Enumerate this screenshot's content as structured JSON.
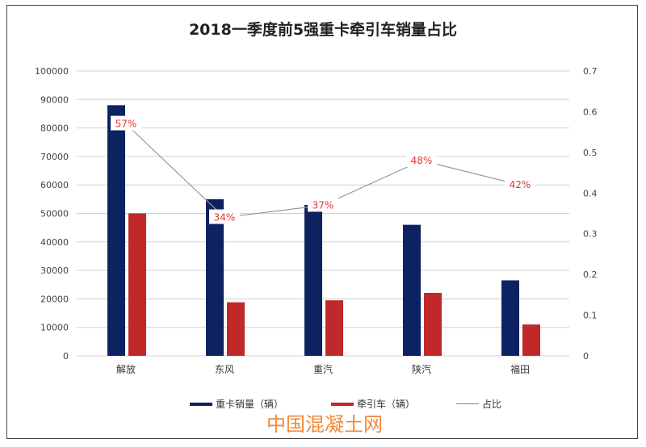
{
  "chart_data": {
    "type": "bar",
    "title": "2018一季度前5强重卡牵引车销量占比",
    "categories": [
      "解放",
      "东风",
      "重汽",
      "陕汽",
      "福田"
    ],
    "series": [
      {
        "name": "重卡销量（辆）",
        "type": "bar",
        "axis": "left",
        "color": "#0d2260",
        "values": [
          88000,
          55000,
          53000,
          46000,
          26500
        ]
      },
      {
        "name": "牵引车（辆）",
        "type": "bar",
        "axis": "left",
        "color": "#c0282a",
        "values": [
          50000,
          18800,
          19500,
          22100,
          11000
        ]
      },
      {
        "name": "占比",
        "type": "line",
        "axis": "right",
        "color": "#999999",
        "values": [
          0.57,
          0.34,
          0.37,
          0.48,
          0.42
        ],
        "labels": [
          "57%",
          "34%",
          "37%",
          "48%",
          "42%"
        ]
      }
    ],
    "ylim_left": [
      0,
      100000
    ],
    "ylim_right": [
      0,
      0.7
    ],
    "yticks_left": [
      "0",
      "10000",
      "20000",
      "30000",
      "40000",
      "50000",
      "60000",
      "70000",
      "80000",
      "90000",
      "100000"
    ],
    "yticks_right": [
      "0",
      "0.1",
      "0.2",
      "0.3",
      "0.4",
      "0.5",
      "0.6",
      "0.7"
    ],
    "grid": true,
    "legend_position": "bottom"
  },
  "watermark": "中国混凝土网"
}
